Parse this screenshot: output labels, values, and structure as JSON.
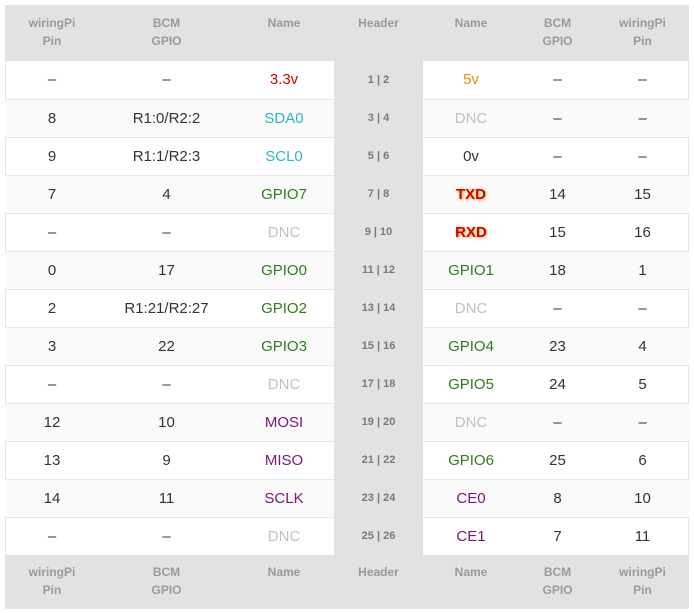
{
  "header": {
    "wiringpi_left": [
      "wiringPi",
      "Pin"
    ],
    "bcm_left": [
      "BCM",
      "GPIO"
    ],
    "name_left": "Name",
    "header": "Header",
    "name_right": "Name",
    "bcm_right": [
      "BCM",
      "GPIO"
    ],
    "wiringpi_right": [
      "wiringPi",
      "Pin"
    ]
  },
  "rows": [
    {
      "wp_l": "–",
      "bcm_l": "–",
      "name_l": "3.3v",
      "name_l_style": "red",
      "header": "1 | 2",
      "name_r": "5v",
      "name_r_style": "orange",
      "bcm_r": "–",
      "wp_r": "–"
    },
    {
      "wp_l": "8",
      "bcm_l": "R1:0/R2:2",
      "name_l": "SDA0",
      "name_l_style": "cyan",
      "header": "3 | 4",
      "name_r": "DNC",
      "name_r_style": "gray",
      "bcm_r": "–",
      "wp_r": "–"
    },
    {
      "wp_l": "9",
      "bcm_l": "R1:1/R2:3",
      "name_l": "SCL0",
      "name_l_style": "cyan",
      "header": "5 | 6",
      "name_r": "0v",
      "name_r_style": "dark",
      "bcm_r": "–",
      "wp_r": "–"
    },
    {
      "wp_l": "7",
      "bcm_l": "4",
      "name_l": "GPIO7",
      "name_l_style": "green",
      "header": "7 | 8",
      "name_r": "TXD",
      "name_r_style": "txd",
      "bcm_r": "14",
      "wp_r": "15"
    },
    {
      "wp_l": "–",
      "bcm_l": "–",
      "name_l": "DNC",
      "name_l_style": "gray",
      "header": "9 | 10",
      "name_r": "RXD",
      "name_r_style": "txd",
      "bcm_r": "15",
      "wp_r": "16"
    },
    {
      "wp_l": "0",
      "bcm_l": "17",
      "name_l": "GPIO0",
      "name_l_style": "green",
      "header": "11 | 12",
      "name_r": "GPIO1",
      "name_r_style": "green",
      "bcm_r": "18",
      "wp_r": "1"
    },
    {
      "wp_l": "2",
      "bcm_l": "R1:21/R2:27",
      "name_l": "GPIO2",
      "name_l_style": "green",
      "header": "13 | 14",
      "name_r": "DNC",
      "name_r_style": "gray",
      "bcm_r": "–",
      "wp_r": "–"
    },
    {
      "wp_l": "3",
      "bcm_l": "22",
      "name_l": "GPIO3",
      "name_l_style": "green",
      "header": "15 | 16",
      "name_r": "GPIO4",
      "name_r_style": "green",
      "bcm_r": "23",
      "wp_r": "4"
    },
    {
      "wp_l": "–",
      "bcm_l": "–",
      "name_l": "DNC",
      "name_l_style": "gray",
      "header": "17 | 18",
      "name_r": "GPIO5",
      "name_r_style": "green",
      "bcm_r": "24",
      "wp_r": "5"
    },
    {
      "wp_l": "12",
      "bcm_l": "10",
      "name_l": "MOSI",
      "name_l_style": "purple",
      "header": "19 | 20",
      "name_r": "DNC",
      "name_r_style": "gray",
      "bcm_r": "–",
      "wp_r": "–"
    },
    {
      "wp_l": "13",
      "bcm_l": "9",
      "name_l": "MISO",
      "name_l_style": "purple",
      "header": "21 | 22",
      "name_r": "GPIO6",
      "name_r_style": "green",
      "bcm_r": "25",
      "wp_r": "6"
    },
    {
      "wp_l": "14",
      "bcm_l": "11",
      "name_l": "SCLK",
      "name_l_style": "purple",
      "header": "23 | 24",
      "name_r": "CE0",
      "name_r_style": "purple",
      "bcm_r": "8",
      "wp_r": "10"
    },
    {
      "wp_l": "–",
      "bcm_l": "–",
      "name_l": "DNC",
      "name_l_style": "gray",
      "header": "25 | 26",
      "name_r": "CE1",
      "name_r_style": "purple",
      "bcm_r": "7",
      "wp_r": "11"
    }
  ],
  "colors": {
    "red": "#d40000",
    "orange": "#f08c00",
    "cyan": "#29b6c8",
    "green": "#2e7d1a",
    "gray": "#c0c0c0",
    "purple": "#7a1677",
    "header_bg": "#e2e2e2"
  }
}
